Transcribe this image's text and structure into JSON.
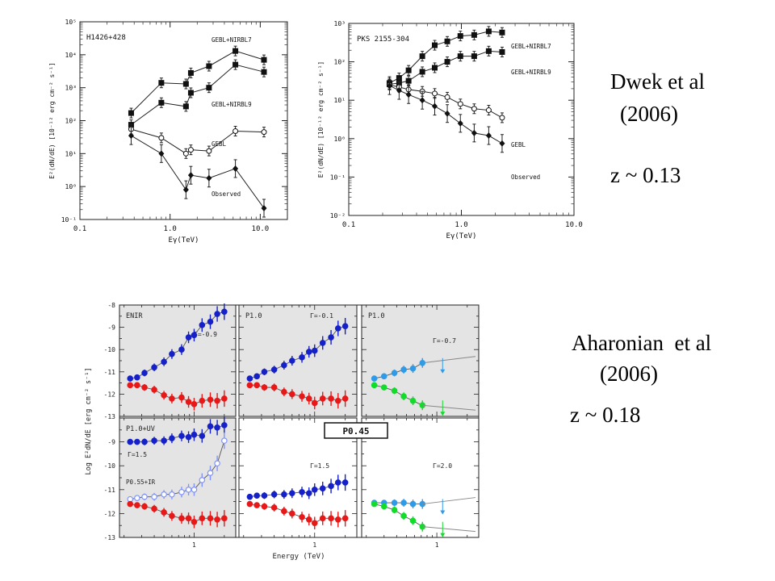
{
  "captions": {
    "dwek_name": "Dwek et al",
    "dwek_year": "(2006)",
    "dwek_z": "z ~ 0.13",
    "ah_name": "Aharonian  et al",
    "ah_year": "(2006)",
    "ah_z": "z ~ 0.18"
  },
  "chart_data": [
    {
      "type": "scatter",
      "title": "H1426+428",
      "xlabel": "Eγ(TeV)",
      "ylabel": "E²(dN/dE) [10⁻¹² erg cm⁻² s⁻¹]",
      "xscale": "log",
      "yscale": "log",
      "xlim": [
        0.1,
        20
      ],
      "ylim": [
        0.1,
        100000
      ],
      "xticks": [
        "0.1",
        "1.0",
        "10.0"
      ],
      "yticks": [
        "10⁻¹",
        "10⁰",
        "10¹",
        "10²",
        "10³",
        "10⁴",
        "10⁵"
      ],
      "series": [
        {
          "name": "GEBL+NIRBL7",
          "marker": "filled-square",
          "x": [
            0.37,
            0.8,
            1.5,
            1.7,
            2.7,
            5.3,
            11.0
          ],
          "y": [
            170,
            1400,
            1300,
            2800,
            4500,
            13000,
            7000
          ]
        },
        {
          "name": "GEBL+NIRBL9",
          "marker": "filled-square",
          "x": [
            0.37,
            0.8,
            1.5,
            1.7,
            2.7,
            5.3,
            11.0
          ],
          "y": [
            75,
            350,
            270,
            700,
            1000,
            5000,
            3000
          ]
        },
        {
          "name": "GEBL",
          "marker": "open-circle",
          "x": [
            0.37,
            0.8,
            1.5,
            1.7,
            2.7,
            5.3,
            11.0
          ],
          "y": [
            55,
            30,
            10,
            13,
            12,
            48,
            45
          ]
        },
        {
          "name": "Observed",
          "marker": "filled-diamond",
          "x": [
            0.37,
            0.8,
            1.5,
            1.7,
            2.7,
            5.3,
            11.0
          ],
          "y": [
            35,
            10,
            0.8,
            2.2,
            1.8,
            3.5,
            0.22
          ]
        }
      ]
    },
    {
      "type": "scatter",
      "title": "PKS 2155-304",
      "xlabel": "Eγ(TeV)",
      "ylabel": "E²(dN/dE) [10⁻¹² erg cm⁻² s⁻¹]",
      "xscale": "log",
      "yscale": "log",
      "xlim": [
        0.1,
        10
      ],
      "ylim": [
        0.01,
        1000
      ],
      "xticks": [
        "0.1",
        "1.0",
        "10.0"
      ],
      "yticks": [
        "10⁻²",
        "10⁻¹",
        "10⁰",
        "10¹",
        "10²",
        "10³"
      ],
      "series": [
        {
          "name": "GEBL+NIRBL7",
          "marker": "filled-square",
          "x": [
            0.23,
            0.28,
            0.34,
            0.45,
            0.58,
            0.75,
            0.98,
            1.3,
            1.75,
            2.3
          ],
          "y": [
            28,
            38,
            60,
            140,
            270,
            340,
            470,
            500,
            620,
            580
          ]
        },
        {
          "name": "GEBL+NIRBL9",
          "marker": "filled-square",
          "x": [
            0.23,
            0.28,
            0.34,
            0.45,
            0.58,
            0.75,
            0.98,
            1.3,
            1.75,
            2.3
          ],
          "y": [
            26,
            28,
            32,
            55,
            70,
            100,
            140,
            140,
            190,
            180
          ]
        },
        {
          "name": "GEBL",
          "marker": "open-circle",
          "x": [
            0.23,
            0.28,
            0.34,
            0.45,
            0.58,
            0.75,
            0.98,
            1.3,
            1.75,
            2.3
          ],
          "y": [
            25,
            22,
            19,
            17,
            15,
            12,
            8,
            6,
            5.5,
            3.5
          ]
        },
        {
          "name": "Observed",
          "marker": "filled-diamond",
          "x": [
            0.23,
            0.28,
            0.34,
            0.45,
            0.58,
            0.75,
            0.98,
            1.3,
            1.75,
            2.3
          ],
          "y": [
            24,
            18,
            14,
            10,
            7,
            4.5,
            2.5,
            1.4,
            1.2,
            0.75
          ]
        }
      ]
    },
    {
      "type": "scatter",
      "title": "",
      "xlabel": "Energy (TeV)",
      "ylabel": "Log E²dN/dE [erg cm⁻² s⁻¹]",
      "xscale": "log",
      "ylim": [
        -13,
        -8
      ],
      "yticks": [
        "-8",
        "-9",
        "-10",
        "-11",
        "-12",
        "-13"
      ],
      "xticks": [
        "1"
      ],
      "center_label": "P0.45",
      "panels": [
        {
          "row": 0,
          "col": 0,
          "label": "ENIR",
          "gamma": "Γ=-0.9",
          "shaded": true,
          "series": [
            {
              "color": "#1520c8",
              "x": [
                0.23,
                0.27,
                0.32,
                0.4,
                0.5,
                0.6,
                0.75,
                0.88,
                1.0,
                1.2,
                1.45,
                1.7,
                2.0
              ],
              "y": [
                -11.3,
                -11.25,
                -11.05,
                -10.8,
                -10.55,
                -10.2,
                -10.0,
                -9.45,
                -9.35,
                -8.9,
                -8.75,
                -8.4,
                -8.3
              ]
            },
            {
              "color": "#e81818",
              "x": [
                0.23,
                0.27,
                0.32,
                0.4,
                0.5,
                0.6,
                0.75,
                0.88,
                1.0,
                1.2,
                1.45,
                1.7,
                2.0
              ],
              "y": [
                -11.6,
                -11.6,
                -11.7,
                -11.8,
                -12.05,
                -12.2,
                -12.15,
                -12.35,
                -12.45,
                -12.3,
                -12.25,
                -12.3,
                -12.2
              ]
            }
          ]
        },
        {
          "row": 0,
          "col": 1,
          "label": "P1.0",
          "gamma": "Γ=-0.1",
          "shaded": true,
          "series": [
            {
              "color": "#1520c8",
              "x": [
                0.23,
                0.27,
                0.32,
                0.4,
                0.5,
                0.6,
                0.75,
                0.88,
                1.0,
                1.2,
                1.45,
                1.7,
                2.0
              ],
              "y": [
                -11.3,
                -11.2,
                -11.0,
                -10.9,
                -10.7,
                -10.5,
                -10.35,
                -10.1,
                -10.05,
                -9.7,
                -9.45,
                -9.05,
                -8.95
              ]
            },
            {
              "color": "#e81818",
              "x": [
                0.23,
                0.27,
                0.32,
                0.4,
                0.5,
                0.6,
                0.75,
                0.88,
                1.0,
                1.2,
                1.45,
                1.7,
                2.0
              ],
              "y": [
                -11.6,
                -11.6,
                -11.7,
                -11.7,
                -11.9,
                -12.0,
                -12.1,
                -12.2,
                -12.4,
                -12.2,
                -12.2,
                -12.3,
                -12.2
              ]
            }
          ]
        },
        {
          "row": 0,
          "col": 2,
          "label": "P1.0",
          "gamma": "Γ=-0.7",
          "shaded": true,
          "series": [
            {
              "color": "#2f9be8",
              "x": [
                0.24,
                0.3,
                0.38,
                0.47,
                0.58,
                0.72
              ],
              "y": [
                -11.3,
                -11.2,
                -11.05,
                -10.9,
                -10.85,
                -10.6
              ]
            },
            {
              "color": "#12dc2a",
              "x": [
                0.24,
                0.3,
                0.38,
                0.47,
                0.58,
                0.72
              ],
              "y": [
                -11.6,
                -11.7,
                -11.85,
                -12.1,
                -12.3,
                -12.5
              ]
            }
          ]
        },
        {
          "row": 1,
          "col": 0,
          "label": "P1.0+UV",
          "gamma": "Γ=1.5",
          "extra_label": "P0.55+IR",
          "shaded": true,
          "series": [
            {
              "color": "#1520c8",
              "x": [
                0.23,
                0.27,
                0.32,
                0.4,
                0.5,
                0.6,
                0.75,
                0.88,
                1.0,
                1.2,
                1.45,
                1.7,
                2.0
              ],
              "y": [
                -9.0,
                -9.0,
                -9.0,
                -8.95,
                -8.95,
                -8.85,
                -8.75,
                -8.8,
                -8.7,
                -8.75,
                -8.35,
                -8.4,
                -8.3
              ]
            },
            {
              "color": "#7f93ff",
              "x": [
                0.23,
                0.27,
                0.32,
                0.4,
                0.5,
                0.6,
                0.75,
                0.88,
                1.0,
                1.2,
                1.45,
                1.7,
                2.0
              ],
              "y": [
                -11.4,
                -11.35,
                -11.3,
                -11.3,
                -11.2,
                -11.2,
                -11.1,
                -11.0,
                -11.0,
                -10.6,
                -10.3,
                -9.9,
                -8.95
              ]
            },
            {
              "color": "#e81818",
              "x": [
                0.23,
                0.27,
                0.32,
                0.4,
                0.5,
                0.6,
                0.75,
                0.88,
                1.0,
                1.2,
                1.45,
                1.7,
                2.0
              ],
              "y": [
                -11.6,
                -11.65,
                -11.7,
                -11.8,
                -11.95,
                -12.1,
                -12.2,
                -12.2,
                -12.35,
                -12.2,
                -12.2,
                -12.25,
                -12.2
              ]
            }
          ]
        },
        {
          "row": 1,
          "col": 1,
          "label": "",
          "gamma": "Γ=1.5",
          "shaded": false,
          "series": [
            {
              "color": "#1520c8",
              "x": [
                0.23,
                0.27,
                0.32,
                0.4,
                0.5,
                0.6,
                0.75,
                0.88,
                1.0,
                1.2,
                1.45,
                1.7,
                2.0
              ],
              "y": [
                -11.3,
                -11.25,
                -11.25,
                -11.2,
                -11.2,
                -11.15,
                -11.1,
                -11.15,
                -11.0,
                -10.95,
                -10.85,
                -10.7,
                -10.7
              ]
            },
            {
              "color": "#e81818",
              "x": [
                0.23,
                0.27,
                0.32,
                0.4,
                0.5,
                0.6,
                0.75,
                0.88,
                1.0,
                1.2,
                1.45,
                1.7,
                2.0
              ],
              "y": [
                -11.6,
                -11.65,
                -11.7,
                -11.75,
                -11.9,
                -12.0,
                -12.15,
                -12.25,
                -12.4,
                -12.2,
                -12.2,
                -12.25,
                -12.2
              ]
            }
          ]
        },
        {
          "row": 1,
          "col": 2,
          "label": "",
          "gamma": "Γ=2.0",
          "shaded": false,
          "series": [
            {
              "color": "#2f9be8",
              "x": [
                0.24,
                0.3,
                0.38,
                0.47,
                0.58,
                0.72
              ],
              "y": [
                -11.55,
                -11.55,
                -11.55,
                -11.55,
                -11.6,
                -11.6
              ]
            },
            {
              "color": "#12dc2a",
              "x": [
                0.24,
                0.3,
                0.38,
                0.47,
                0.58,
                0.72
              ],
              "y": [
                -11.6,
                -11.7,
                -11.85,
                -12.1,
                -12.3,
                -12.55
              ]
            }
          ]
        }
      ]
    }
  ]
}
